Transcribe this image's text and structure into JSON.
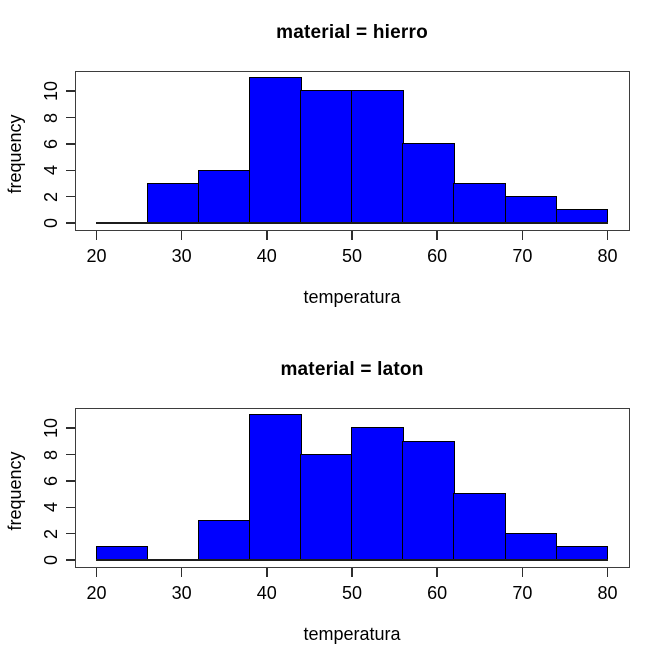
{
  "colors": {
    "background": "#ffffff",
    "bar_fill": "#0000ff",
    "bar_stroke": "#000000",
    "frame": "#3d3d3d",
    "tick": "#2e2e2e",
    "text": "#000000"
  },
  "chart_data": [
    {
      "type": "bar",
      "subtype": "histogram",
      "title": "material = hierro",
      "xlabel": "temperatura",
      "ylabel": "frequency",
      "breaks": [
        20,
        26,
        32,
        38,
        44,
        50,
        56,
        62,
        68,
        74,
        80
      ],
      "counts": [
        0,
        3,
        4,
        11,
        10,
        10,
        6,
        3,
        2,
        1
      ],
      "x_ticks": [
        20,
        30,
        40,
        50,
        60,
        70,
        80
      ],
      "y_ticks": [
        0,
        2,
        4,
        6,
        8,
        10
      ],
      "xlim": [
        17.6,
        82.4
      ],
      "ylim": [
        -0.46,
        11.46
      ],
      "grid": false,
      "legend_position": "none"
    },
    {
      "type": "bar",
      "subtype": "histogram",
      "title": "material = laton",
      "xlabel": "temperatura",
      "ylabel": "frequency",
      "breaks": [
        20,
        26,
        32,
        38,
        44,
        50,
        56,
        62,
        68,
        74,
        80
      ],
      "counts": [
        1,
        0,
        3,
        11,
        8,
        10,
        9,
        5,
        2,
        1
      ],
      "x_ticks": [
        20,
        30,
        40,
        50,
        60,
        70,
        80
      ],
      "y_ticks": [
        0,
        2,
        4,
        6,
        8,
        10
      ],
      "xlim": [
        17.6,
        82.4
      ],
      "ylim": [
        -0.46,
        11.46
      ],
      "grid": false,
      "legend_position": "none"
    }
  ]
}
